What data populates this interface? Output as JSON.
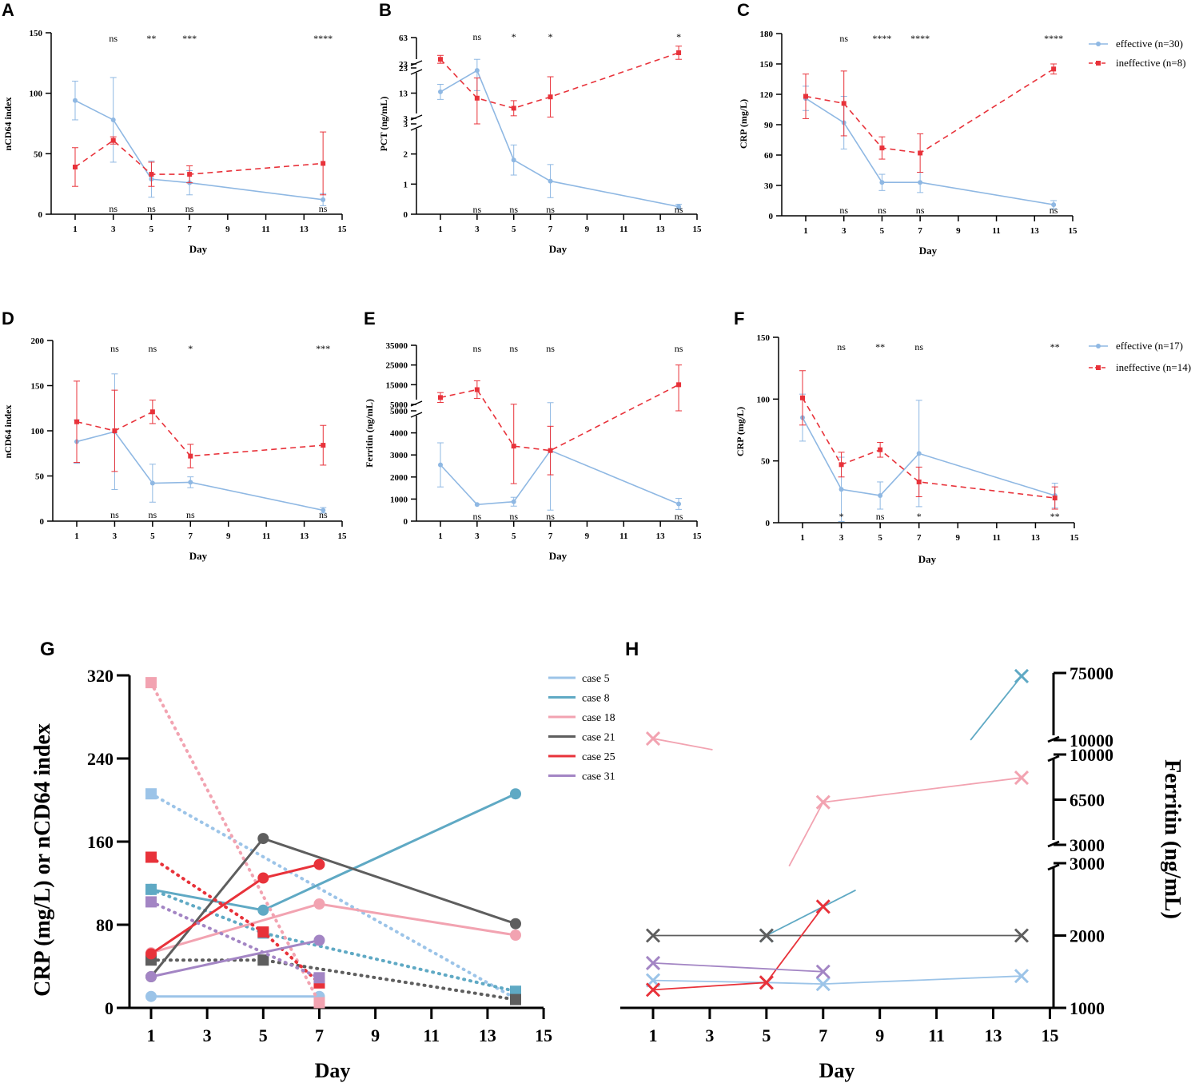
{
  "colors": {
    "effective": "#8fb8e3",
    "ineffective": "#e8323a",
    "axis": "#000000"
  },
  "chart_data": [
    {
      "id": "A",
      "type": "line",
      "letter": "A",
      "ylabel": "nCD64 index",
      "xlabel": "Day",
      "xticks": [
        1,
        3,
        5,
        7,
        9,
        11,
        13,
        15
      ],
      "yticks": [
        0,
        50,
        100,
        150
      ],
      "ylim": [
        0,
        150
      ],
      "xlim": [
        0,
        15
      ],
      "series": [
        {
          "name": "effective",
          "x": [
            1,
            3,
            5,
            7,
            14
          ],
          "y": [
            94,
            78,
            29,
            26,
            12
          ],
          "err": [
            16,
            35,
            15,
            10,
            5
          ]
        },
        {
          "name": "ineffective",
          "x": [
            1,
            3,
            5,
            7,
            14
          ],
          "y": [
            39,
            61,
            33,
            33,
            42
          ],
          "err": [
            16,
            3,
            10,
            7,
            26
          ]
        }
      ],
      "sig_top": [
        {
          "x": 3,
          "t": "ns"
        },
        {
          "x": 5,
          "t": "**"
        },
        {
          "x": 7,
          "t": "***"
        },
        {
          "x": 14,
          "t": "****"
        }
      ],
      "sig_bottom": [
        {
          "x": 3,
          "t": "ns"
        },
        {
          "x": 5,
          "t": "ns"
        },
        {
          "x": 7,
          "t": "ns"
        },
        {
          "x": 14,
          "t": "ns"
        }
      ]
    },
    {
      "id": "B",
      "type": "line",
      "letter": "B",
      "ylabel": "PCT (ng/mL)",
      "xlabel": "Day",
      "xticks": [
        1,
        3,
        5,
        7,
        9,
        11,
        13,
        15
      ],
      "xlim": [
        0,
        15
      ],
      "segments": [
        {
          "range": [
            0,
            3
          ],
          "ticks": [
            0,
            1,
            2,
            3
          ]
        },
        {
          "range": [
            3,
            23
          ],
          "ticks": [
            3,
            13,
            23
          ]
        },
        {
          "range": [
            23,
            63
          ],
          "ticks": [
            23,
            63
          ]
        }
      ],
      "series": [
        {
          "name": "effective",
          "x": [
            1,
            3,
            5,
            7,
            14
          ],
          "y": [
            13.5,
            22,
            1.8,
            1.1,
            0.25
          ],
          "err": [
            3,
            8,
            0.5,
            0.55,
            0.08
          ]
        },
        {
          "name": "ineffective",
          "x": [
            1,
            3,
            5,
            7,
            14
          ],
          "y": [
            30,
            11,
            7,
            11.5,
            40
          ],
          "err": [
            6,
            8,
            3,
            8,
            10
          ]
        }
      ],
      "sig_top": [
        {
          "x": 3,
          "t": "ns"
        },
        {
          "x": 5,
          "t": "*"
        },
        {
          "x": 7,
          "t": "*"
        },
        {
          "x": 14,
          "t": "*"
        }
      ],
      "sig_bottom": [
        {
          "x": 3,
          "t": "ns"
        },
        {
          "x": 5,
          "t": "ns"
        },
        {
          "x": 7,
          "t": "ns"
        },
        {
          "x": 14,
          "t": "ns"
        }
      ]
    },
    {
      "id": "C",
      "type": "line",
      "letter": "C",
      "ylabel": "CRP (mg/L)",
      "xlabel": "Day",
      "xticks": [
        1,
        3,
        5,
        7,
        9,
        11,
        13,
        15
      ],
      "yticks": [
        0,
        30,
        60,
        90,
        120,
        150,
        180
      ],
      "ylim": [
        0,
        180
      ],
      "xlim": [
        0,
        15
      ],
      "series": [
        {
          "name": "effective",
          "x": [
            1,
            3,
            5,
            7,
            14
          ],
          "y": [
            116,
            92,
            33,
            33,
            11
          ],
          "err": [
            12,
            26,
            8,
            10,
            4
          ]
        },
        {
          "name": "ineffective",
          "x": [
            1,
            3,
            5,
            7,
            14
          ],
          "y": [
            118,
            111,
            67,
            62,
            145
          ],
          "err": [
            22,
            32,
            11,
            19,
            5
          ]
        }
      ],
      "legend": [
        "effective (n=30)",
        "ineffective (n=8)"
      ],
      "sig_top": [
        {
          "x": 3,
          "t": "ns"
        },
        {
          "x": 5,
          "t": "****"
        },
        {
          "x": 7,
          "t": "****"
        },
        {
          "x": 14,
          "t": "****"
        }
      ],
      "sig_bottom": [
        {
          "x": 3,
          "t": "ns"
        },
        {
          "x": 5,
          "t": "ns"
        },
        {
          "x": 7,
          "t": "ns"
        },
        {
          "x": 14,
          "t": "ns"
        }
      ]
    },
    {
      "id": "D",
      "type": "line",
      "letter": "D",
      "ylabel": "nCD64 index",
      "xlabel": "Day",
      "xticks": [
        1,
        3,
        5,
        7,
        9,
        11,
        13,
        15
      ],
      "yticks": [
        0,
        50,
        100,
        150,
        200
      ],
      "ylim": [
        0,
        200
      ],
      "xlim": [
        0,
        15
      ],
      "series": [
        {
          "name": "effective",
          "x": [
            1,
            3,
            5,
            7,
            14
          ],
          "y": [
            88,
            99,
            42,
            43,
            12
          ],
          "err": [
            24,
            64,
            21,
            6,
            3
          ]
        },
        {
          "name": "ineffective",
          "x": [
            1,
            3,
            5,
            7,
            14
          ],
          "y": [
            110,
            100,
            121,
            72,
            84
          ],
          "err": [
            45,
            45,
            13,
            13,
            22
          ]
        }
      ],
      "sig_top": [
        {
          "x": 3,
          "t": "ns"
        },
        {
          "x": 5,
          "t": "ns"
        },
        {
          "x": 7,
          "t": "*"
        },
        {
          "x": 14,
          "t": "***"
        }
      ],
      "sig_bottom": [
        {
          "x": 3,
          "t": "ns"
        },
        {
          "x": 5,
          "t": "ns"
        },
        {
          "x": 7,
          "t": "ns"
        },
        {
          "x": 14,
          "t": "ns"
        }
      ]
    },
    {
      "id": "E",
      "type": "line",
      "letter": "E",
      "ylabel": "Ferritin (ng/mL)",
      "xlabel": "Day",
      "xticks": [
        1,
        3,
        5,
        7,
        9,
        11,
        13,
        15
      ],
      "xlim": [
        0,
        15
      ],
      "segments": [
        {
          "range": [
            0,
            5000
          ],
          "ticks": [
            0,
            1000,
            2000,
            3000,
            4000,
            5000
          ]
        },
        {
          "range": [
            5000,
            35000
          ],
          "ticks": [
            5000,
            15000,
            25000,
            35000
          ]
        }
      ],
      "series": [
        {
          "name": "effective",
          "x": [
            1,
            3,
            5,
            7,
            14
          ],
          "y": [
            2550,
            750,
            880,
            3200,
            780
          ],
          "err": [
            1000,
            0,
            200,
            2700,
            250
          ]
        },
        {
          "name": "ineffective",
          "x": [
            1,
            3,
            5,
            7,
            14
          ],
          "y": [
            8500,
            12500,
            3400,
            3200,
            15000
          ],
          "err": [
            2500,
            4500,
            1700,
            1100,
            10000
          ]
        }
      ],
      "sig_top": [
        {
          "x": 3,
          "t": "ns"
        },
        {
          "x": 5,
          "t": "ns"
        },
        {
          "x": 7,
          "t": "ns"
        },
        {
          "x": 14,
          "t": "ns"
        }
      ],
      "sig_bottom": [
        {
          "x": 3,
          "t": "ns"
        },
        {
          "x": 5,
          "t": "ns"
        },
        {
          "x": 7,
          "t": "ns"
        },
        {
          "x": 14,
          "t": "ns"
        }
      ]
    },
    {
      "id": "F",
      "type": "line",
      "letter": "F",
      "ylabel": "CRP (mg/L)",
      "xlabel": "Day",
      "xticks": [
        1,
        3,
        5,
        7,
        9,
        11,
        13,
        15
      ],
      "yticks": [
        0,
        50,
        100,
        150
      ],
      "ylim": [
        0,
        150
      ],
      "xlim": [
        0,
        15
      ],
      "series": [
        {
          "name": "effective",
          "x": [
            1,
            3,
            5,
            7,
            14
          ],
          "y": [
            85,
            27,
            22,
            56,
            22
          ],
          "err": [
            19,
            26,
            11,
            43,
            10
          ]
        },
        {
          "name": "ineffective",
          "x": [
            1,
            3,
            5,
            7,
            14
          ],
          "y": [
            101,
            47,
            59,
            33,
            20
          ],
          "err": [
            22,
            10,
            6,
            12,
            9
          ]
        }
      ],
      "legend": [
        "effective (n=17)",
        "ineffective (n=14)"
      ],
      "sig_top": [
        {
          "x": 3,
          "t": "ns"
        },
        {
          "x": 5,
          "t": "**"
        },
        {
          "x": 7,
          "t": "ns"
        },
        {
          "x": 14,
          "t": "**"
        }
      ],
      "sig_bottom": [
        {
          "x": 3,
          "t": "*"
        },
        {
          "x": 5,
          "t": "ns"
        },
        {
          "x": 7,
          "t": "*"
        },
        {
          "x": 14,
          "t": "**"
        }
      ]
    },
    {
      "id": "G",
      "type": "line",
      "letter": "G",
      "ylabel": "CRP (mg/L) or nCD64 index",
      "xlabel": "Day",
      "xticks": [
        1,
        3,
        5,
        7,
        9,
        11,
        13,
        15
      ],
      "yticks": [
        0,
        80,
        160,
        240,
        320
      ],
      "ylim": [
        0,
        320
      ],
      "xlim": [
        0,
        15
      ],
      "legend": [
        "case 5",
        "case 8",
        "case 18",
        "case 21",
        "case 25",
        "case 31"
      ],
      "cases": [
        {
          "name": "case 5",
          "color": "#9cc4e8",
          "crp": {
            "x": [
              1,
              7
            ],
            "y": [
              11,
              11
            ]
          },
          "cd64": {
            "x": [
              1,
              14
            ],
            "y": [
              206,
              9
            ]
          }
        },
        {
          "name": "case 8",
          "color": "#5fa9c4",
          "crp": {
            "x": [
              1,
              5,
              14
            ],
            "y": [
              114,
              94,
              206
            ]
          },
          "cd64": {
            "x": [
              1,
              5,
              14
            ],
            "y": [
              114,
              72,
              16
            ]
          }
        },
        {
          "name": "case 18",
          "color": "#f2a3b1",
          "crp": {
            "x": [
              1,
              7,
              14
            ],
            "y": [
              53,
              100,
              70
            ]
          },
          "cd64": {
            "x": [
              1,
              7
            ],
            "y": [
              313,
              5
            ]
          }
        },
        {
          "name": "case 21",
          "color": "#5e5e5e",
          "crp": {
            "x": [
              1,
              5,
              14
            ],
            "y": [
              30,
              163,
              81
            ]
          },
          "cd64": {
            "x": [
              1,
              5,
              14
            ],
            "y": [
              46,
              46,
              8
            ]
          }
        },
        {
          "name": "case 25",
          "color": "#e8323a",
          "crp": {
            "x": [
              1,
              5,
              7
            ],
            "y": [
              52,
              125,
              138
            ]
          },
          "cd64": {
            "x": [
              1,
              5,
              7
            ],
            "y": [
              145,
              73,
              24
            ]
          }
        },
        {
          "name": "case 31",
          "color": "#a385c4",
          "crp": {
            "x": [
              1,
              7
            ],
            "y": [
              30,
              65
            ]
          },
          "cd64": {
            "x": [
              1,
              7
            ],
            "y": [
              102,
              29
            ]
          }
        }
      ]
    },
    {
      "id": "H",
      "type": "line",
      "letter": "H",
      "ylabel": "Ferritin (ng/mL)",
      "xlabel": "Day",
      "xticks": [
        1,
        3,
        5,
        7,
        9,
        11,
        13,
        15
      ],
      "xlim": [
        0,
        15
      ],
      "segments": [
        {
          "range": [
            1000,
            3000
          ],
          "ticks": [
            1000,
            2000,
            3000
          ]
        },
        {
          "range": [
            3000,
            10000
          ],
          "ticks": [
            3000,
            6500,
            10000
          ]
        },
        {
          "range": [
            10000,
            75000
          ],
          "ticks": [
            10000,
            75000
          ]
        }
      ],
      "cases": [
        {
          "name": "case 5",
          "color": "#9cc4e8",
          "x": [
            1,
            5,
            7,
            14
          ],
          "y": [
            1380,
            1350,
            1330,
            1440
          ]
        },
        {
          "name": "case 8",
          "color": "#5fa9c4",
          "x": [
            5,
            14
          ],
          "y": [
            2000,
            72000
          ]
        },
        {
          "name": "case 18",
          "color": "#f2a3b1",
          "x": [
            1,
            7,
            14
          ],
          "y": [
            11500,
            6300,
            8200
          ]
        },
        {
          "name": "case 21",
          "color": "#5e5e5e",
          "x": [
            1,
            5,
            14
          ],
          "y": [
            2000,
            2000,
            2000
          ]
        },
        {
          "name": "case 25",
          "color": "#e8323a",
          "x": [
            1,
            5,
            7
          ],
          "y": [
            1250,
            1350,
            2400
          ]
        },
        {
          "name": "case 31",
          "color": "#a385c4",
          "x": [
            1,
            7
          ],
          "y": [
            1620,
            1500
          ]
        }
      ]
    }
  ]
}
